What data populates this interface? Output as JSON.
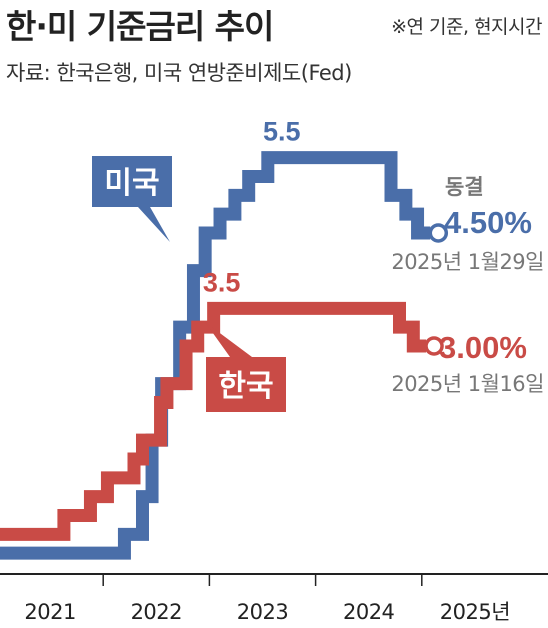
{
  "header": {
    "title": "한·미 기준금리 추이",
    "note": "※연 기준, 현지시간",
    "source": "자료: 한국은행, 미국 연방준비제도(Fed)"
  },
  "colors": {
    "us": "#4a6ea9",
    "korea": "#c94b46",
    "axis": "#222222",
    "date_text": "#777777",
    "background": "#ffffff"
  },
  "chart_data": {
    "type": "line",
    "step": true,
    "x_unit": "year",
    "xlim": [
      2021.0,
      2026.0
    ],
    "ylim": [
      0,
      6
    ],
    "grid": false,
    "x_ticks": [
      {
        "x": 2021.5,
        "label": "2021"
      },
      {
        "x": 2022.5,
        "label": "2022"
      },
      {
        "x": 2023.5,
        "label": "2023"
      },
      {
        "x": 2024.5,
        "label": "2024"
      },
      {
        "x": 2025.5,
        "label": "2025년"
      }
    ],
    "series": [
      {
        "name": "미국",
        "color_key": "us",
        "points": [
          [
            2021.0,
            0.25
          ],
          [
            2022.2,
            0.5
          ],
          [
            2022.37,
            1.0
          ],
          [
            2022.46,
            1.75
          ],
          [
            2022.55,
            2.5
          ],
          [
            2022.72,
            3.25
          ],
          [
            2022.85,
            4.0
          ],
          [
            2022.96,
            4.5
          ],
          [
            2023.1,
            4.75
          ],
          [
            2023.24,
            5.0
          ],
          [
            2023.37,
            5.25
          ],
          [
            2023.55,
            5.5
          ],
          [
            2024.71,
            5.0
          ],
          [
            2024.85,
            4.75
          ],
          [
            2024.96,
            4.5
          ],
          [
            2025.08,
            4.5
          ]
        ],
        "peak_label": "5.5",
        "end_value": "4.50%",
        "end_date": "2025년 1월29일",
        "end_note": "동결",
        "callout": "미국"
      },
      {
        "name": "한국",
        "color_key": "korea",
        "points": [
          [
            2021.0,
            0.5
          ],
          [
            2021.63,
            0.75
          ],
          [
            2021.88,
            1.0
          ],
          [
            2022.04,
            1.25
          ],
          [
            2022.29,
            1.5
          ],
          [
            2022.37,
            1.75
          ],
          [
            2022.54,
            2.25
          ],
          [
            2022.6,
            2.5
          ],
          [
            2022.78,
            3.0
          ],
          [
            2022.89,
            3.25
          ],
          [
            2023.04,
            3.5
          ],
          [
            2024.79,
            3.25
          ],
          [
            2024.92,
            3.0
          ],
          [
            2025.04,
            3.0
          ]
        ],
        "peak_label": "3.5",
        "end_value": "3.00%",
        "end_date": "2025년 1월16일",
        "callout": "한국"
      }
    ]
  }
}
